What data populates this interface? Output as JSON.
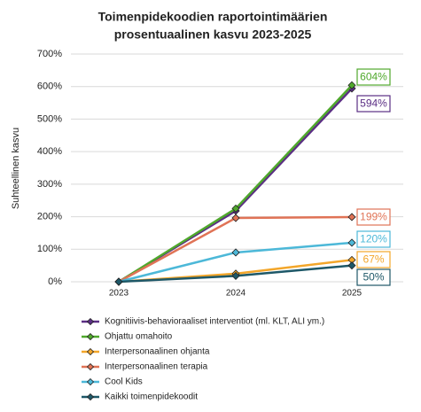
{
  "chart_data": {
    "type": "line",
    "title": "Toimenpidekoodien raportointimäärien",
    "subtitle": "prosentuaalinen kasvu 2023-2025",
    "y_label": "Suhteellinen kasvu",
    "categories": [
      "2023",
      "2024",
      "2025"
    ],
    "ylim": [
      0,
      700
    ],
    "yticks": [
      {
        "value": 0,
        "label": "0%"
      },
      {
        "value": 100,
        "label": "100%"
      },
      {
        "value": 200,
        "label": "200%"
      },
      {
        "value": 300,
        "label": "300%"
      },
      {
        "value": 400,
        "label": "400%"
      },
      {
        "value": 500,
        "label": "500%"
      },
      {
        "value": 600,
        "label": "600%"
      },
      {
        "value": 700,
        "label": "700%"
      }
    ],
    "grid": true,
    "legend": "bottom",
    "series": [
      {
        "name": "Kognitiivis-behavioraaliset interventiot (ml. KLT, ALI ym.)",
        "color": "#5b2e84",
        "values": [
          0,
          218,
          594
        ],
        "value_labels": [
          null,
          null,
          "594%"
        ]
      },
      {
        "name": "Ohjattu omahoito",
        "color": "#4fa82c",
        "values": [
          0,
          225,
          604
        ],
        "value_labels": [
          null,
          null,
          "604%"
        ]
      },
      {
        "name": "Interpersonaalinen ohjanta",
        "color": "#f3a62a",
        "values": [
          0,
          25,
          67
        ],
        "value_labels": [
          null,
          null,
          "67%"
        ]
      },
      {
        "name": "Interpersonaalinen terapia",
        "color": "#e07356",
        "values": [
          0,
          196,
          199
        ],
        "value_labels": [
          null,
          null,
          "199%"
        ]
      },
      {
        "name": "Cool Kids",
        "color": "#4cb8d8",
        "values": [
          0,
          90,
          120
        ],
        "value_labels": [
          null,
          null,
          "120%"
        ]
      },
      {
        "name": "Kaikki toimenpidekoodit",
        "color": "#1e5868",
        "values": [
          0,
          18,
          50
        ],
        "value_labels": [
          null,
          null,
          "50%"
        ]
      }
    ]
  }
}
